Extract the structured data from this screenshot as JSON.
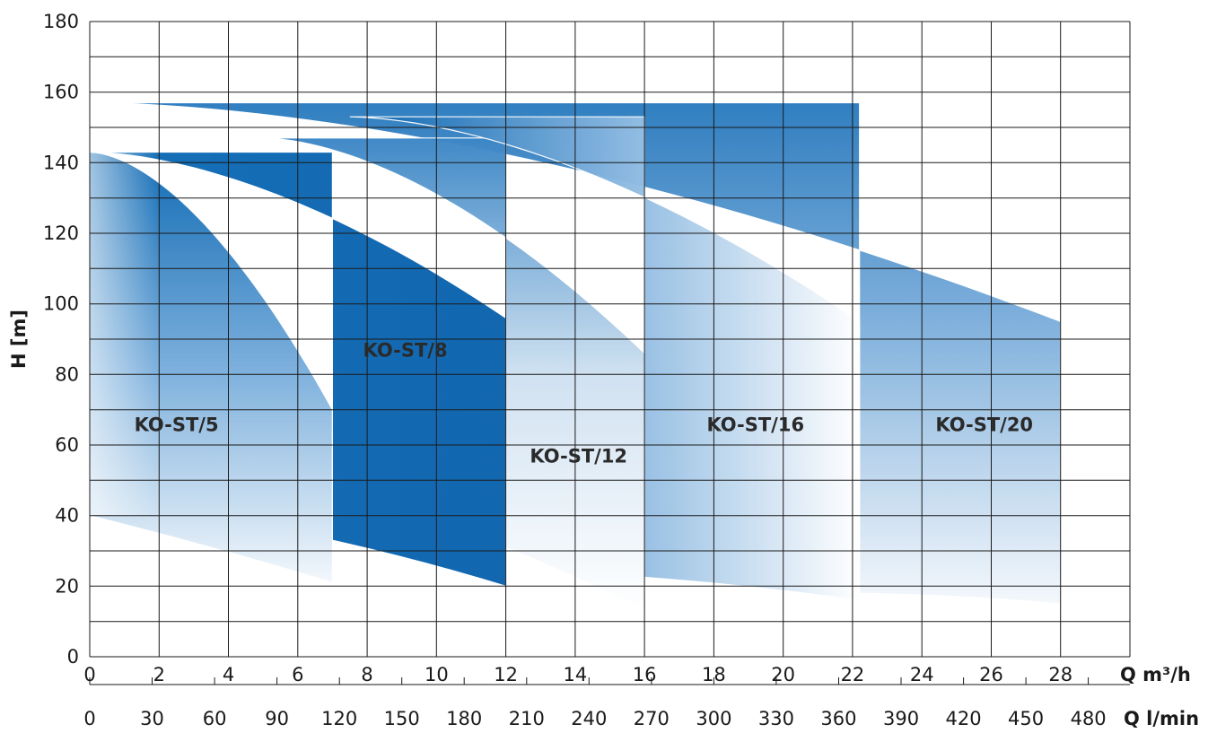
{
  "chart_data": {
    "type": "area",
    "title": "",
    "ylabel": "H [m]",
    "ylim": [
      0,
      180
    ],
    "yticks": [
      "0",
      "20",
      "40",
      "60",
      "80",
      "100",
      "120",
      "140",
      "160",
      "180"
    ],
    "xlabel": "Q m³/h",
    "xlim": [
      0,
      30
    ],
    "xticks": [
      "0",
      "2",
      "4",
      "6",
      "8",
      "10",
      "12",
      "14",
      "16",
      "18",
      "20",
      "22",
      "24",
      "26",
      "28"
    ],
    "x2label": "Q l/min",
    "x2ticks": [
      "0",
      "30",
      "60",
      "90",
      "120",
      "150",
      "180",
      "210",
      "240",
      "270",
      "300",
      "330",
      "360",
      "390",
      "420",
      "450",
      "480"
    ],
    "grid": true,
    "colors": {
      "fill": "#0a67b3",
      "grid": "#1a1a1a",
      "text": "#1a1a1a"
    },
    "series": [
      {
        "name": "KO-ST/5",
        "q_min": 0,
        "q_max": 7,
        "h_top_start": 143,
        "h_top_end": 70,
        "h_bottom_start": 40,
        "h_bottom_end": 21
      },
      {
        "name": "KO-ST/8",
        "q_min": 0,
        "q_max": 12,
        "h_top_start": 143,
        "h_top_end": 96,
        "h_bottom_start": 40,
        "h_bottom_end": 20
      },
      {
        "name": "KO-ST/12",
        "q_min": 5,
        "q_max": 16,
        "h_top_start": 147,
        "h_top_end": 86,
        "h_bottom_start": 30,
        "h_bottom_end": 13
      },
      {
        "name": "KO-ST/16",
        "q_min": 7.5,
        "q_max": 22.2,
        "h_top_start": 153,
        "h_top_end": 95,
        "h_bottom_start": 25,
        "h_bottom_end": 16
      },
      {
        "name": "KO-ST/20",
        "q_min": 0,
        "q_max": 28,
        "h_top_start": 157,
        "h_top_end": 95,
        "h_bottom_start": 40,
        "h_bottom_end": 15
      }
    ]
  }
}
